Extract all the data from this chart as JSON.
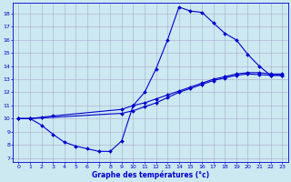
{
  "xlabel": "Graphe des températures (°c)",
  "xlim": [
    -0.5,
    23.5
  ],
  "ylim": [
    6.7,
    18.8
  ],
  "yticks": [
    7,
    8,
    9,
    10,
    11,
    12,
    13,
    14,
    15,
    16,
    17,
    18
  ],
  "xticks": [
    0,
    1,
    2,
    3,
    4,
    5,
    6,
    7,
    8,
    9,
    10,
    11,
    12,
    13,
    14,
    15,
    16,
    17,
    18,
    19,
    20,
    21,
    22,
    23
  ],
  "bg_color": "#cce8f0",
  "line_color": "#0000cc",
  "grid_color": "#aaaacc",
  "line1_x": [
    0,
    1,
    2,
    3,
    4,
    5,
    6,
    7,
    8,
    9,
    10,
    11,
    12,
    13,
    14,
    15,
    16,
    17,
    18,
    19,
    20,
    21,
    22,
    23
  ],
  "line1_y": [
    10.0,
    10.0,
    9.5,
    8.8,
    8.2,
    7.9,
    7.7,
    7.5,
    7.5,
    8.3,
    11.0,
    12.0,
    13.8,
    16.0,
    18.5,
    18.2,
    18.1,
    17.3,
    16.5,
    16.0,
    14.9,
    14.0,
    13.3,
    13.3
  ],
  "line2_x": [
    0,
    1,
    2,
    3,
    9,
    10,
    11,
    12,
    13,
    14,
    15,
    16,
    17,
    18,
    19,
    20,
    21,
    22,
    23
  ],
  "line2_y": [
    10.0,
    10.0,
    10.1,
    10.2,
    10.7,
    11.0,
    11.2,
    11.5,
    11.8,
    12.1,
    12.4,
    12.7,
    13.0,
    13.2,
    13.4,
    13.5,
    13.5,
    13.4,
    13.4
  ],
  "line3_x": [
    0,
    1,
    9,
    10,
    11,
    12,
    13,
    14,
    15,
    16,
    17,
    18,
    19,
    20,
    21,
    22,
    23
  ],
  "line3_y": [
    10.0,
    10.0,
    10.4,
    10.6,
    10.9,
    11.2,
    11.6,
    12.0,
    12.3,
    12.6,
    12.9,
    13.1,
    13.3,
    13.4,
    13.35,
    13.3,
    13.3
  ]
}
